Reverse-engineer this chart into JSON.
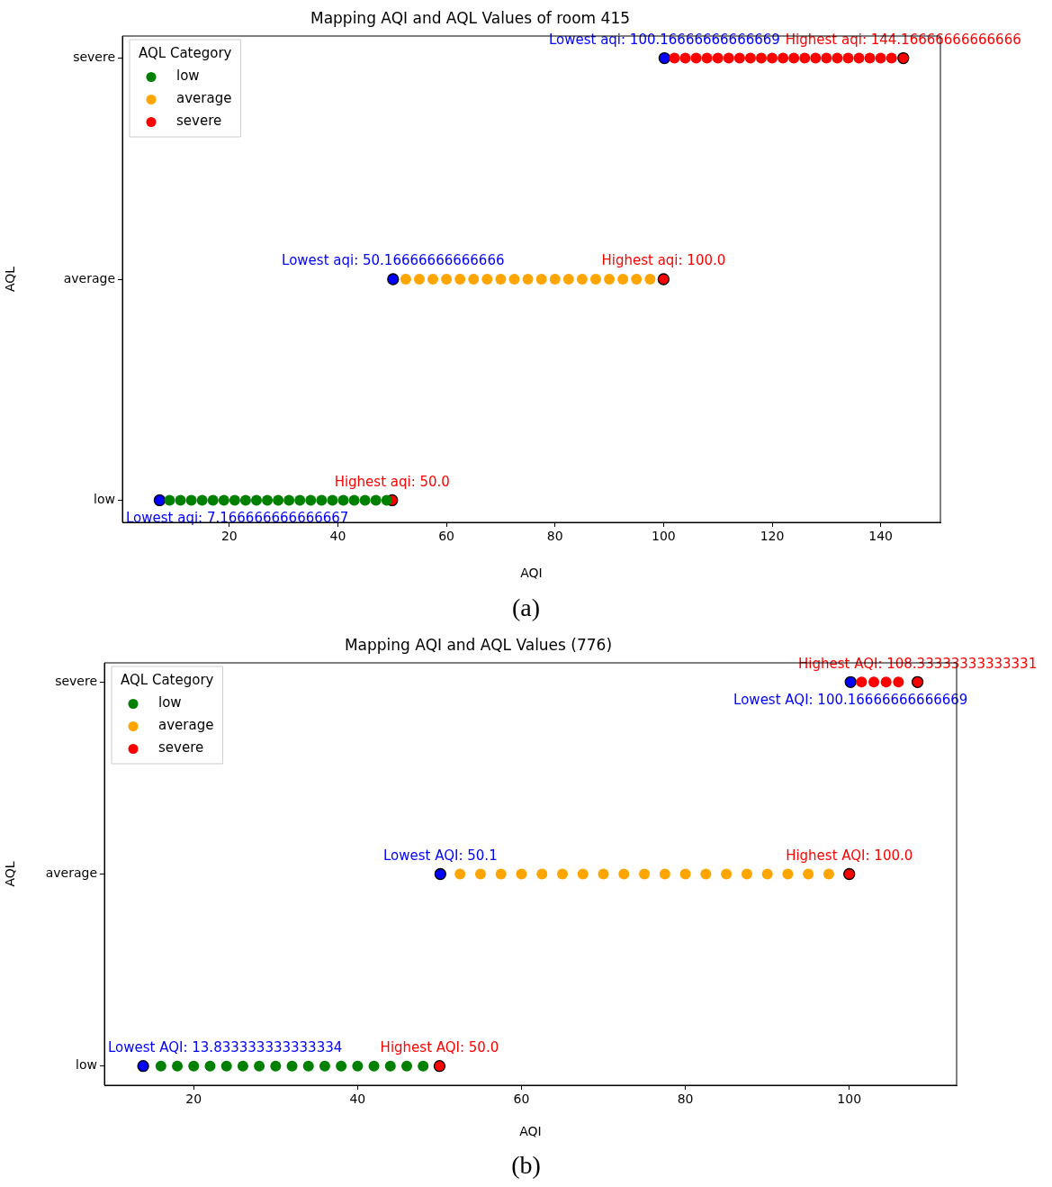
{
  "chart_data": [
    {
      "type": "scatter",
      "orientation": "horizontal",
      "title": "Mapping AQI and AQL Values of room 415",
      "xlabel": "AQI",
      "ylabel": "AQL",
      "xlim": [
        0.3,
        151.0
      ],
      "xticks": [
        20,
        40,
        60,
        80,
        100,
        120,
        140
      ],
      "categories": [
        "severe",
        "average",
        "low"
      ],
      "legend": "top left",
      "legend_title": "AQL Category",
      "marker": "circle",
      "annotations": [
        "(a)"
      ],
      "series": [
        {
          "name": "low",
          "color": "#008000",
          "values": [
            9,
            11,
            13,
            15,
            17,
            19,
            21,
            23,
            25,
            27,
            29,
            31,
            33,
            35,
            37,
            39,
            41,
            43,
            45,
            47,
            49
          ],
          "x": [
            "low",
            "low",
            "low",
            "low",
            "low",
            "low",
            "low",
            "low",
            "low",
            "low",
            "low",
            "low",
            "low",
            "low",
            "low",
            "low",
            "low",
            "low",
            "low",
            "low",
            "low"
          ]
        },
        {
          "name": "average",
          "color": "#ffa500",
          "values": [
            52.5,
            55,
            57.5,
            60,
            62.5,
            65,
            67.5,
            70,
            72.5,
            75,
            77.5,
            80,
            82.5,
            85,
            87.5,
            90,
            92.5,
            95,
            97.5
          ],
          "x": [
            "average",
            "average",
            "average",
            "average",
            "average",
            "average",
            "average",
            "average",
            "average",
            "average",
            "average",
            "average",
            "average",
            "average",
            "average",
            "average",
            "average",
            "average",
            "average"
          ]
        },
        {
          "name": "severe",
          "color": "#ff0000",
          "values": [
            102,
            104,
            106,
            108,
            110,
            112,
            114,
            116,
            118,
            120,
            122,
            124,
            126,
            128,
            130,
            132,
            134,
            136,
            138,
            140,
            142
          ],
          "x": [
            "severe",
            "severe",
            "severe",
            "severe",
            "severe",
            "severe",
            "severe",
            "severe",
            "severe",
            "severe",
            "severe",
            "severe",
            "severe",
            "severe",
            "severe",
            "severe",
            "severe",
            "severe",
            "severe",
            "severe",
            "severe"
          ]
        },
        {
          "color": "#ff0000",
          "values": [
            50,
            100,
            144.16666666666666
          ],
          "x": [
            "low",
            "average",
            "severe"
          ],
          "value_labels": [
            "Highest aqi: 50.0",
            "Highest aqi: 100.0",
            "Highest aqi: 144.16666666666666"
          ]
        },
        {
          "color": "#0000ff",
          "values": [
            7.166666666666667,
            50.16666666666666,
            100.16666666666669
          ],
          "x": [
            "low",
            "average",
            "severe"
          ],
          "value_labels": [
            "Lowest aqi: 7.166666666666667",
            "Lowest aqi: 50.16666666666666",
            "Lowest aqi: 100.16666666666669"
          ]
        }
      ]
    },
    {
      "type": "scatter",
      "orientation": "horizontal",
      "title": "Mapping AQI and AQL Values (776)",
      "xlabel": "AQI",
      "ylabel": "AQL",
      "xlim": [
        9.1,
        113.1
      ],
      "xticks": [
        20,
        40,
        60,
        80,
        100
      ],
      "categories": [
        "severe",
        "average",
        "low"
      ],
      "legend": "top left",
      "legend_title": "AQL Category",
      "marker": "circle",
      "annotations": [
        "(b)"
      ],
      "series": [
        {
          "name": "low",
          "color": "#008000",
          "values": [
            16,
            18,
            20,
            22,
            24,
            26,
            28,
            30,
            32,
            34,
            36,
            38,
            40,
            42,
            44,
            46,
            48
          ],
          "x": [
            "low",
            "low",
            "low",
            "low",
            "low",
            "low",
            "low",
            "low",
            "low",
            "low",
            "low",
            "low",
            "low",
            "low",
            "low",
            "low",
            "low"
          ]
        },
        {
          "name": "average",
          "color": "#ffa500",
          "values": [
            52.5,
            55,
            57.5,
            60,
            62.5,
            65,
            67.5,
            70,
            72.5,
            75,
            77.5,
            80,
            82.5,
            85,
            87.5,
            90,
            92.5,
            95,
            97.5
          ],
          "x": [
            "average",
            "average",
            "average",
            "average",
            "average",
            "average",
            "average",
            "average",
            "average",
            "average",
            "average",
            "average",
            "average",
            "average",
            "average",
            "average",
            "average",
            "average",
            "average"
          ]
        },
        {
          "name": "severe",
          "color": "#ff0000",
          "values": [
            101.5,
            103,
            104.5,
            106
          ],
          "x": [
            "severe",
            "severe",
            "severe",
            "severe"
          ]
        },
        {
          "color": "#ff0000",
          "values": [
            50,
            100,
            108.33333333333331
          ],
          "x": [
            "low",
            "average",
            "severe"
          ],
          "value_labels": [
            "Highest AQI: 50.0",
            "Highest AQI: 100.0",
            "Highest AQI: 108.33333333333331"
          ]
        },
        {
          "color": "#0000ff",
          "values": [
            13.833333333333334,
            50.1,
            100.16666666666669
          ],
          "x": [
            "low",
            "average",
            "severe"
          ],
          "value_labels": [
            "Lowest AQI: 13.833333333333334",
            "Lowest AQI: 50.1",
            "Lowest AQI: 100.16666666666669"
          ]
        }
      ]
    }
  ]
}
